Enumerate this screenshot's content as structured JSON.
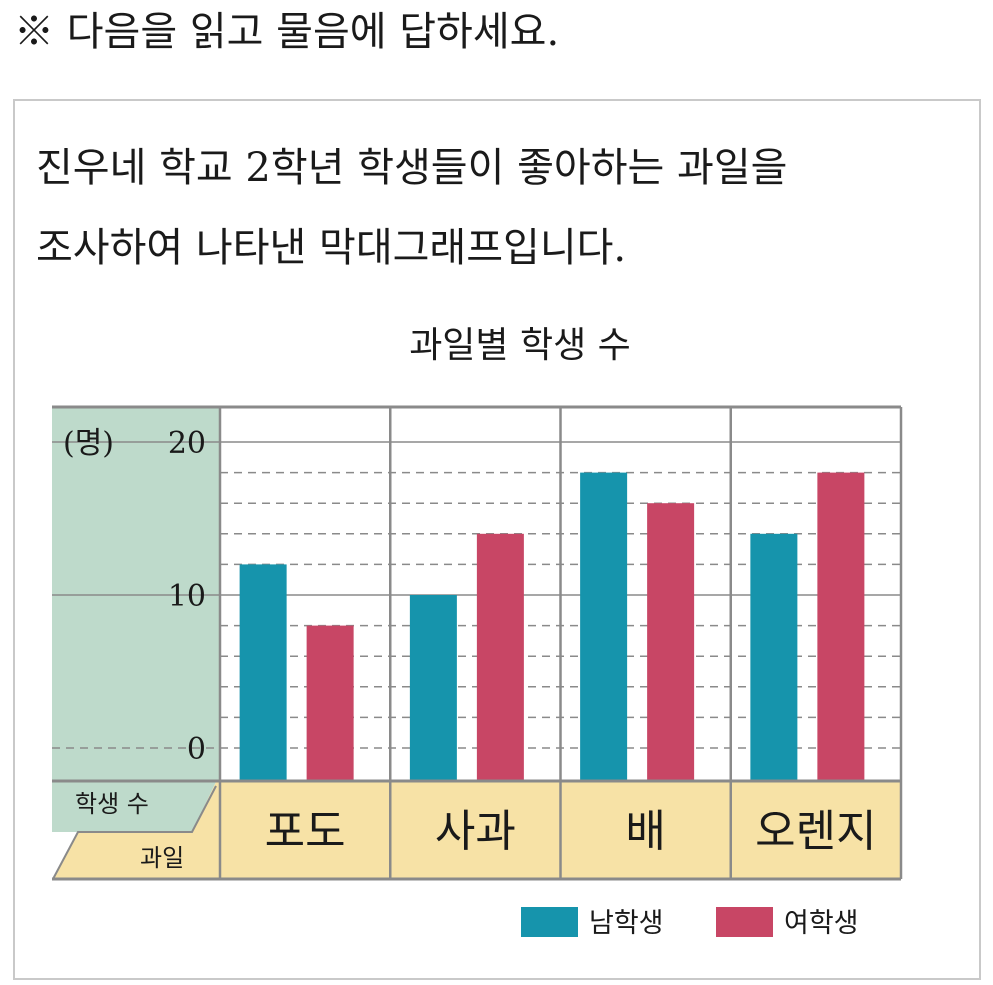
{
  "instruction": "※ 다음을 읽고 물음에 답하세요.",
  "description_lines": [
    "진우네 학교 2학년 학생들이 좋아하는 과일을",
    "조사하여 나타낸 막대그래프입니다."
  ],
  "colors": {
    "male": "#1694ac",
    "female": "#c84665",
    "axis_panel": "#bedacb",
    "category_panel": "#f7e2a6",
    "grid": "#8a8a8a"
  },
  "chart_data": {
    "type": "bar",
    "title": "과일별 학생 수",
    "ylabel": "(명)",
    "header_top": "학생 수",
    "header_bottom": "과일",
    "categories": [
      "포도",
      "사과",
      "배",
      "오렌지"
    ],
    "series": [
      {
        "name": "남학생",
        "values": [
          12,
          10,
          18,
          14
        ]
      },
      {
        "name": "여학생",
        "values": [
          8,
          14,
          16,
          18
        ]
      }
    ],
    "ylim": [
      0,
      20
    ],
    "yticks": [
      "0",
      "10",
      "20"
    ],
    "minor_step": 2,
    "grid": true,
    "legend_position": "bottom-right"
  }
}
